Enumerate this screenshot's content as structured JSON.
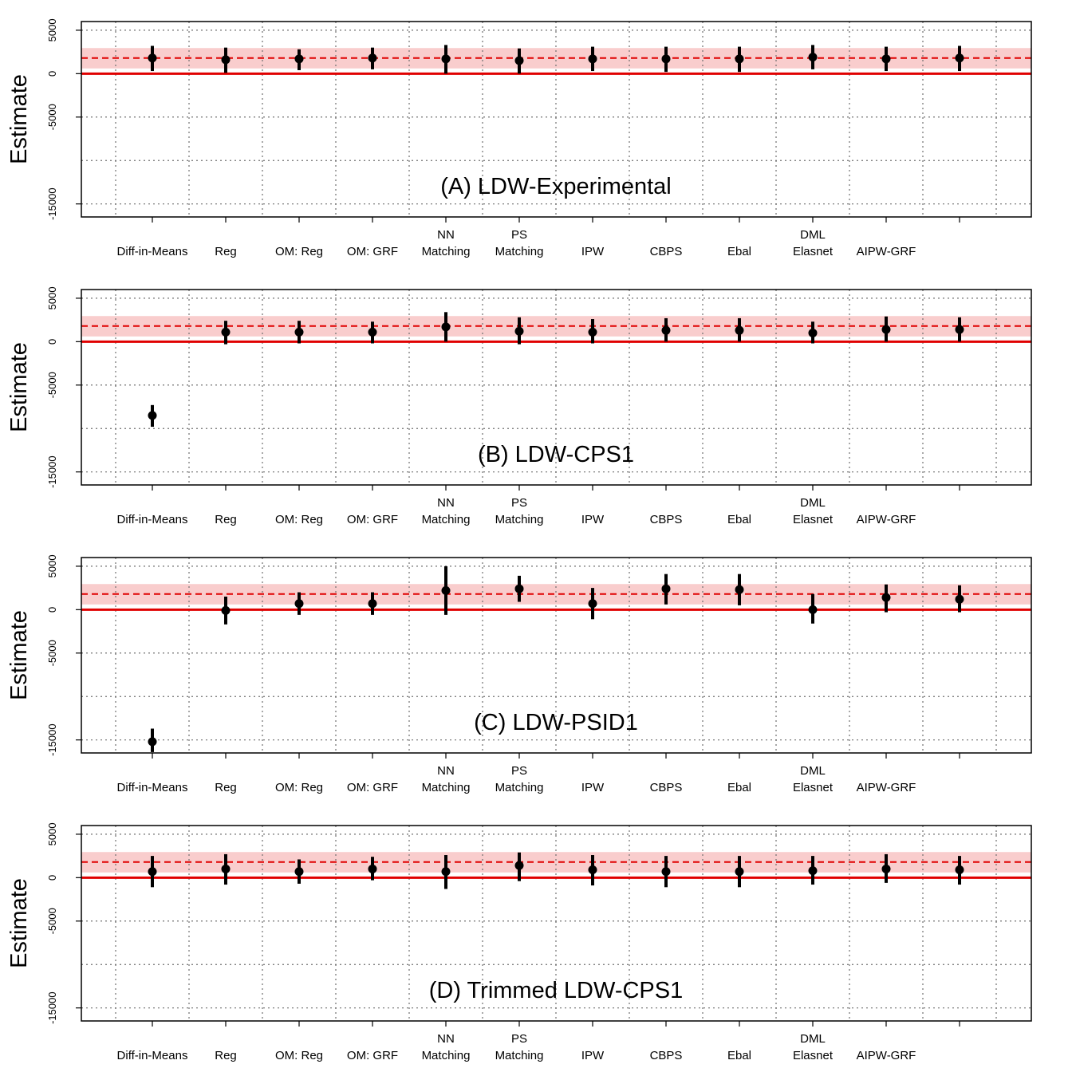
{
  "chart_data": [
    {
      "type": "scatter",
      "title": "(A) LDW-Experimental",
      "ylabel": "Estimate",
      "ylim": [
        -16500,
        6000
      ],
      "yticks": [
        5000,
        0,
        -5000,
        -15000
      ],
      "ytick_labels": [
        "5000",
        "0",
        "-5000",
        "-15000"
      ],
      "grid": true,
      "categories": [
        {
          "line1": "",
          "line2": "Diff-in-Means"
        },
        {
          "line1": "",
          "line2": "Reg"
        },
        {
          "line1": "",
          "line2": "OM: Reg"
        },
        {
          "line1": "",
          "line2": "OM: GRF"
        },
        {
          "line1": "NN",
          "line2": "Matching"
        },
        {
          "line1": "PS",
          "line2": "Matching"
        },
        {
          "line1": "",
          "line2": "IPW"
        },
        {
          "line1": "",
          "line2": "CBPS"
        },
        {
          "line1": "",
          "line2": "Ebal"
        },
        {
          "line1": "DML",
          "line2": "Elasnet"
        },
        {
          "line1": "",
          "line2": "AIPW-GRF"
        },
        {
          "line1": "",
          "line2": ""
        }
      ],
      "reference": {
        "estimate": 1794,
        "ci": [
          600,
          2950
        ],
        "zero": 0
      },
      "estimates": [
        1800,
        1600,
        1700,
        1800,
        1700,
        1500,
        1700,
        1700,
        1700,
        1900,
        1700,
        1800
      ],
      "ci_low": [
        300,
        100,
        400,
        500,
        0,
        0,
        300,
        200,
        200,
        500,
        300,
        300
      ],
      "ci_high": [
        3200,
        3000,
        2800,
        3000,
        3300,
        2900,
        3100,
        3100,
        3100,
        3300,
        3100,
        3200
      ]
    },
    {
      "type": "scatter",
      "title": "(B) LDW-CPS1",
      "ylabel": "Estimate",
      "ylim": [
        -16500,
        6000
      ],
      "yticks": [
        5000,
        0,
        -5000,
        -15000
      ],
      "ytick_labels": [
        "5000",
        "0",
        "-5000",
        "-15000"
      ],
      "grid": true,
      "categories": [
        {
          "line1": "",
          "line2": "Diff-in-Means"
        },
        {
          "line1": "",
          "line2": "Reg"
        },
        {
          "line1": "",
          "line2": "OM: Reg"
        },
        {
          "line1": "",
          "line2": "OM: GRF"
        },
        {
          "line1": "NN",
          "line2": "Matching"
        },
        {
          "line1": "PS",
          "line2": "Matching"
        },
        {
          "line1": "",
          "line2": "IPW"
        },
        {
          "line1": "",
          "line2": "CBPS"
        },
        {
          "line1": "",
          "line2": "Ebal"
        },
        {
          "line1": "DML",
          "line2": "Elasnet"
        },
        {
          "line1": "",
          "line2": "AIPW-GRF"
        },
        {
          "line1": "",
          "line2": ""
        }
      ],
      "reference": {
        "estimate": 1794,
        "ci": [
          600,
          2950
        ],
        "zero": 0
      },
      "estimates": [
        -8500,
        1100,
        1100,
        1100,
        1700,
        1200,
        1100,
        1300,
        1300,
        1000,
        1400,
        1400
      ],
      "ci_low": [
        -9800,
        -300,
        -200,
        -200,
        0,
        -300,
        -200,
        0,
        0,
        -200,
        0,
        0
      ],
      "ci_high": [
        -7300,
        2400,
        2400,
        2300,
        3400,
        2800,
        2600,
        2700,
        2700,
        2300,
        2900,
        2800
      ]
    },
    {
      "type": "scatter",
      "title": "(C) LDW-PSID1",
      "ylabel": "Estimate",
      "ylim": [
        -16500,
        6000
      ],
      "yticks": [
        5000,
        0,
        -5000,
        -15000
      ],
      "ytick_labels": [
        "5000",
        "0",
        "-5000",
        "-15000"
      ],
      "grid": true,
      "categories": [
        {
          "line1": "",
          "line2": "Diff-in-Means"
        },
        {
          "line1": "",
          "line2": "Reg"
        },
        {
          "line1": "",
          "line2": "OM: Reg"
        },
        {
          "line1": "",
          "line2": "OM: GRF"
        },
        {
          "line1": "NN",
          "line2": "Matching"
        },
        {
          "line1": "PS",
          "line2": "Matching"
        },
        {
          "line1": "",
          "line2": "IPW"
        },
        {
          "line1": "",
          "line2": "CBPS"
        },
        {
          "line1": "",
          "line2": "Ebal"
        },
        {
          "line1": "DML",
          "line2": "Elasnet"
        },
        {
          "line1": "",
          "line2": "AIPW-GRF"
        },
        {
          "line1": "",
          "line2": ""
        }
      ],
      "reference": {
        "estimate": 1794,
        "ci": [
          600,
          2950
        ],
        "zero": 0
      },
      "estimates": [
        -15200,
        -100,
        700,
        700,
        2200,
        2400,
        700,
        2400,
        2300,
        0,
        1400,
        1200
      ],
      "ci_low": [
        -16400,
        -1700,
        -600,
        -600,
        -600,
        900,
        -1100,
        600,
        500,
        -1600,
        -300,
        -300
      ],
      "ci_high": [
        -13700,
        1500,
        2000,
        2000,
        5000,
        3900,
        2500,
        4100,
        4100,
        1800,
        2900,
        2800
      ]
    },
    {
      "type": "scatter",
      "title": "(D) Trimmed LDW-CPS1",
      "ylabel": "Estimate",
      "ylim": [
        -16500,
        6000
      ],
      "yticks": [
        5000,
        0,
        -5000,
        -15000
      ],
      "ytick_labels": [
        "5000",
        "0",
        "-5000",
        "-15000"
      ],
      "grid": true,
      "categories": [
        {
          "line1": "",
          "line2": "Diff-in-Means"
        },
        {
          "line1": "",
          "line2": "Reg"
        },
        {
          "line1": "",
          "line2": "OM: Reg"
        },
        {
          "line1": "",
          "line2": "OM: GRF"
        },
        {
          "line1": "NN",
          "line2": "Matching"
        },
        {
          "line1": "PS",
          "line2": "Matching"
        },
        {
          "line1": "",
          "line2": "IPW"
        },
        {
          "line1": "",
          "line2": "CBPS"
        },
        {
          "line1": "",
          "line2": "Ebal"
        },
        {
          "line1": "DML",
          "line2": "Elasnet"
        },
        {
          "line1": "",
          "line2": "AIPW-GRF"
        },
        {
          "line1": "",
          "line2": ""
        }
      ],
      "reference": {
        "estimate": 1794,
        "ci": [
          600,
          2950
        ],
        "zero": 0
      },
      "estimates": [
        700,
        1000,
        700,
        1000,
        700,
        1400,
        900,
        700,
        700,
        800,
        1000,
        900
      ],
      "ci_low": [
        -1100,
        -800,
        -700,
        -300,
        -1300,
        -400,
        -900,
        -1100,
        -1100,
        -800,
        -600,
        -800
      ],
      "ci_high": [
        2500,
        2700,
        2100,
        2400,
        2600,
        2900,
        2600,
        2500,
        2500,
        2500,
        2700,
        2500
      ]
    }
  ],
  "colors": {
    "band": "#f9cdcd",
    "reference_line": "#e00000",
    "zero_line": "#e00000",
    "points": "#000000",
    "grid": "#6e6e6e"
  }
}
